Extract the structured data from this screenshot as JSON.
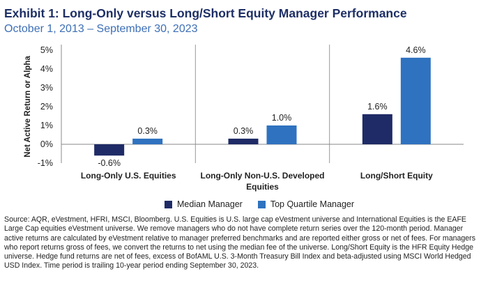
{
  "header": {
    "title": "Exhibit 1: Long-Only versus Long/Short Equity Manager Performance",
    "subtitle": "October 1, 2013 – September 30, 2023"
  },
  "colors": {
    "median": "#1f2b66",
    "top_quartile": "#2f72bf",
    "axis": "#888888",
    "separator": "#999999"
  },
  "chart_data": {
    "type": "bar",
    "categories": [
      [
        "Long-Only U.S. Equities"
      ],
      [
        "Long-Only Non-U.S. Developed",
        "Equities"
      ],
      [
        "Long/Short Equity"
      ]
    ],
    "series": [
      {
        "name": "Median Manager",
        "values": [
          -0.6,
          0.3,
          1.6
        ],
        "labels": [
          "-0.6%",
          "0.3%",
          "1.6%"
        ]
      },
      {
        "name": "Top Quartile Manager",
        "values": [
          0.3,
          1.0,
          4.6
        ],
        "labels": [
          "0.3%",
          "1.0%",
          "4.6%"
        ]
      }
    ],
    "ylabel": "Net Active Return or Alpha",
    "ylim": [
      -1,
      5
    ],
    "yticks": [
      5,
      4,
      3,
      2,
      1,
      0,
      -1
    ],
    "ytick_labels": [
      "5%",
      "4%",
      "3%",
      "2%",
      "1%",
      "0%",
      "-1%"
    ],
    "grid": false,
    "legend": "bottom"
  },
  "source": "Source: AQR, eVestment, HFRI, MSCI, Bloomberg. U.S. Equities is U.S. large cap eVestment universe and International Equities is the EAFE Large Cap equities eVestment universe. We remove managers who do not have complete return series over the 120-month period. Manager active returns are calculated by eVestment relative to manager preferred benchmarks and are reported either gross or net of fees. For managers who report returns gross of fees, we convert the returns to net using the median fee of the universe. Long/Short Equity is the HFR Equity Hedge universe. Hedge fund returns are net of fees, excess of BofAML U.S. 3-Month Treasury Bill Index and beta-adjusted using MSCI World Hedged USD Index. Time period is trailing 10-year period ending September 30, 2023."
}
